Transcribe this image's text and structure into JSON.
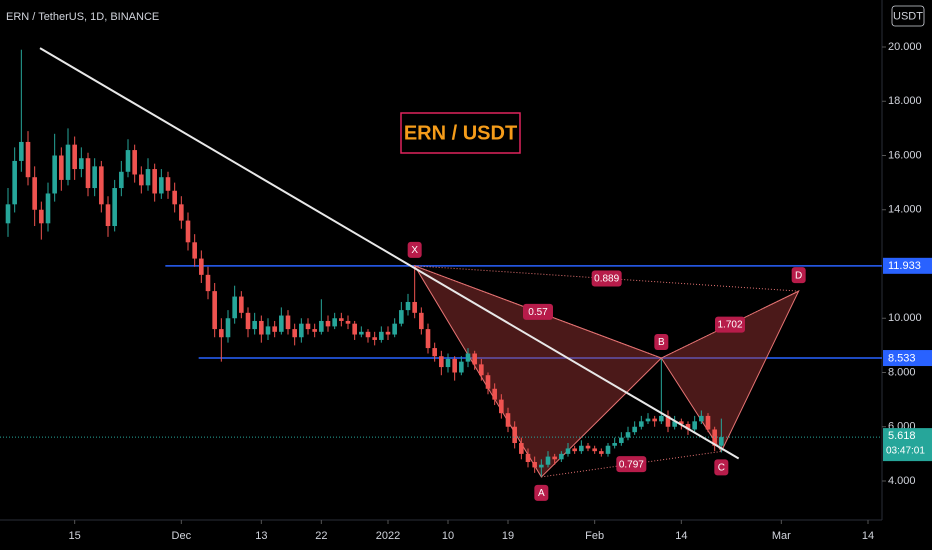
{
  "chart_data": {
    "type": "candlestick",
    "title": "ERN / TetherUS, 1D, BINANCE",
    "currency": "USDT",
    "annotation": "ERN / USDT",
    "countdown": "03:47:01",
    "up_color": "#26a69a",
    "down_color": "#ef5350",
    "xlim": [
      3.8,
      136.1
    ],
    "ylim": [
      2.562,
      21.733
    ],
    "xticks": [
      {
        "value": 15,
        "label": "15"
      },
      {
        "value": 31,
        "label": "Dec"
      },
      {
        "value": 43,
        "label": "13"
      },
      {
        "value": 52,
        "label": "22"
      },
      {
        "value": 62,
        "label": "2022"
      },
      {
        "value": 71,
        "label": "10"
      },
      {
        "value": 80,
        "label": "19"
      },
      {
        "value": 93,
        "label": "Feb"
      },
      {
        "value": 106,
        "label": "14"
      },
      {
        "value": 121,
        "label": "Mar"
      },
      {
        "value": 134,
        "label": "14"
      }
    ],
    "yticks": [
      {
        "value": 4,
        "label": "4.000"
      },
      {
        "value": 6,
        "label": "6.000"
      },
      {
        "value": 8,
        "label": "8.000"
      },
      {
        "value": 10,
        "label": "10.000"
      },
      {
        "value": 14,
        "label": "14.000"
      },
      {
        "value": 16,
        "label": "16.000"
      },
      {
        "value": 18,
        "label": "18.000"
      },
      {
        "value": 20,
        "label": "20.000"
      }
    ],
    "x": [
      5,
      6,
      7,
      8,
      9,
      10,
      11,
      12,
      13,
      14,
      15,
      16,
      17,
      18,
      19,
      20,
      21,
      22,
      23,
      24,
      25,
      26,
      27,
      28,
      29,
      30,
      31,
      32,
      33,
      34,
      35,
      36,
      37,
      38,
      39,
      40,
      41,
      42,
      43,
      44,
      45,
      46,
      47,
      48,
      49,
      50,
      51,
      52,
      53,
      54,
      55,
      56,
      57,
      58,
      59,
      60,
      61,
      62,
      63,
      64,
      65,
      66,
      67,
      68,
      69,
      70,
      71,
      72,
      73,
      74,
      75,
      76,
      77,
      78,
      79,
      80,
      81,
      82,
      83,
      84,
      85,
      86,
      87,
      88,
      89,
      90,
      91,
      92,
      93,
      94,
      95,
      96,
      97,
      98,
      99,
      100,
      101,
      102,
      103,
      104,
      105,
      106,
      107,
      108,
      109,
      110,
      111,
      112
    ],
    "ohlc": [
      [
        13.5,
        14.8,
        13.0,
        14.2
      ],
      [
        14.2,
        16.3,
        13.9,
        15.8
      ],
      [
        15.8,
        19.9,
        15.4,
        16.5
      ],
      [
        16.5,
        16.9,
        14.9,
        15.2
      ],
      [
        15.2,
        15.6,
        13.4,
        14.0
      ],
      [
        14.0,
        14.3,
        12.9,
        13.5
      ],
      [
        13.5,
        15.0,
        13.2,
        14.6
      ],
      [
        14.6,
        16.8,
        14.3,
        16.0
      ],
      [
        16.0,
        16.3,
        14.7,
        15.1
      ],
      [
        15.1,
        17.0,
        14.9,
        16.4
      ],
      [
        16.4,
        16.7,
        15.1,
        15.5
      ],
      [
        15.5,
        16.3,
        15.2,
        15.9
      ],
      [
        15.9,
        16.1,
        14.5,
        14.8
      ],
      [
        14.8,
        15.9,
        14.5,
        15.6
      ],
      [
        15.6,
        15.8,
        13.9,
        14.2
      ],
      [
        14.2,
        14.5,
        13.0,
        13.4
      ],
      [
        13.4,
        15.1,
        13.2,
        14.8
      ],
      [
        14.8,
        15.8,
        14.5,
        15.4
      ],
      [
        15.4,
        16.6,
        15.2,
        16.2
      ],
      [
        16.2,
        16.4,
        15.0,
        15.3
      ],
      [
        15.3,
        15.6,
        14.6,
        14.9
      ],
      [
        14.9,
        15.9,
        14.7,
        15.5
      ],
      [
        15.5,
        15.7,
        14.3,
        14.6
      ],
      [
        14.6,
        15.5,
        14.4,
        15.2
      ],
      [
        15.2,
        15.4,
        14.4,
        14.7
      ],
      [
        14.7,
        15.0,
        13.9,
        14.2
      ],
      [
        14.2,
        14.5,
        13.3,
        13.6
      ],
      [
        13.6,
        13.9,
        12.5,
        12.8
      ],
      [
        12.8,
        13.1,
        11.9,
        12.2
      ],
      [
        12.2,
        12.5,
        11.3,
        11.6
      ],
      [
        11.6,
        11.9,
        10.7,
        11.0
      ],
      [
        11.0,
        11.3,
        9.3,
        9.6
      ],
      [
        9.6,
        10.0,
        8.4,
        9.3
      ],
      [
        9.3,
        10.3,
        9.1,
        10.0
      ],
      [
        10.0,
        11.2,
        9.8,
        10.8
      ],
      [
        10.8,
        11.0,
        10.0,
        10.2
      ],
      [
        10.2,
        10.4,
        9.3,
        9.6
      ],
      [
        9.6,
        10.2,
        9.4,
        9.9
      ],
      [
        9.9,
        10.1,
        9.1,
        9.4
      ],
      [
        9.4,
        10.0,
        9.2,
        9.7
      ],
      [
        9.7,
        9.9,
        9.3,
        9.5
      ],
      [
        9.5,
        10.4,
        9.4,
        10.1
      ],
      [
        10.1,
        10.3,
        9.4,
        9.6
      ],
      [
        9.6,
        9.8,
        9.0,
        9.3
      ],
      [
        9.3,
        10.0,
        9.1,
        9.8
      ],
      [
        9.8,
        10.0,
        9.4,
        9.6
      ],
      [
        9.6,
        9.8,
        9.3,
        9.5
      ],
      [
        9.5,
        10.7,
        9.4,
        9.9
      ],
      [
        9.9,
        10.1,
        9.5,
        9.7
      ],
      [
        9.7,
        10.2,
        9.6,
        10.0
      ],
      [
        10.0,
        10.2,
        9.7,
        9.9
      ],
      [
        9.9,
        10.1,
        9.6,
        9.8
      ],
      [
        9.8,
        9.9,
        9.2,
        9.4
      ],
      [
        9.4,
        9.7,
        9.3,
        9.5
      ],
      [
        9.5,
        9.6,
        9.1,
        9.3
      ],
      [
        9.3,
        9.5,
        9.0,
        9.2
      ],
      [
        9.2,
        9.7,
        9.1,
        9.5
      ],
      [
        9.5,
        9.7,
        9.2,
        9.4
      ],
      [
        9.4,
        10.0,
        9.3,
        9.8
      ],
      [
        9.8,
        10.6,
        9.7,
        10.3
      ],
      [
        10.3,
        10.9,
        10.1,
        10.6
      ],
      [
        10.6,
        11.9,
        10.0,
        10.2
      ],
      [
        10.2,
        10.4,
        9.4,
        9.6
      ],
      [
        9.6,
        9.8,
        8.7,
        8.9
      ],
      [
        8.9,
        9.1,
        8.4,
        8.6
      ],
      [
        8.6,
        8.8,
        7.9,
        8.2
      ],
      [
        8.2,
        8.7,
        8.0,
        8.5
      ],
      [
        8.5,
        8.6,
        7.7,
        8.0
      ],
      [
        8.0,
        8.6,
        7.9,
        8.4
      ],
      [
        8.4,
        8.9,
        8.2,
        8.7
      ],
      [
        8.7,
        8.8,
        8.1,
        8.3
      ],
      [
        8.3,
        8.5,
        7.7,
        7.9
      ],
      [
        7.9,
        8.0,
        7.2,
        7.4
      ],
      [
        7.4,
        7.6,
        6.8,
        7.0
      ],
      [
        7.0,
        7.2,
        6.3,
        6.5
      ],
      [
        6.5,
        6.7,
        5.8,
        6.0
      ],
      [
        6.0,
        6.2,
        5.2,
        5.4
      ],
      [
        5.4,
        5.6,
        4.8,
        5.0
      ],
      [
        5.0,
        5.2,
        4.5,
        4.7
      ],
      [
        4.7,
        4.9,
        4.3,
        4.5
      ],
      [
        4.5,
        4.8,
        4.15,
        4.6
      ],
      [
        4.6,
        5.1,
        4.5,
        4.9
      ],
      [
        4.9,
        5.0,
        4.6,
        4.8
      ],
      [
        4.8,
        5.1,
        4.7,
        5.0
      ],
      [
        5.0,
        5.4,
        4.9,
        5.2
      ],
      [
        5.2,
        5.3,
        5.0,
        5.1
      ],
      [
        5.1,
        5.5,
        5.0,
        5.3
      ],
      [
        5.3,
        5.4,
        5.1,
        5.2
      ],
      [
        5.2,
        5.3,
        5.0,
        5.1
      ],
      [
        5.1,
        5.2,
        4.9,
        5.0
      ],
      [
        5.0,
        5.4,
        4.9,
        5.3
      ],
      [
        5.3,
        5.6,
        5.2,
        5.4
      ],
      [
        5.4,
        5.8,
        5.3,
        5.6
      ],
      [
        5.6,
        6.0,
        5.5,
        5.8
      ],
      [
        5.8,
        6.2,
        5.7,
        6.0
      ],
      [
        6.0,
        6.4,
        5.9,
        6.2
      ],
      [
        6.2,
        6.5,
        6.1,
        6.3
      ],
      [
        6.3,
        6.4,
        6.0,
        6.2
      ],
      [
        6.2,
        8.5,
        6.1,
        6.4
      ],
      [
        6.4,
        6.6,
        5.8,
        6.0
      ],
      [
        6.0,
        6.4,
        5.9,
        6.2
      ],
      [
        6.2,
        6.3,
        5.9,
        6.1
      ],
      [
        6.1,
        6.2,
        5.7,
        5.9
      ],
      [
        5.9,
        6.4,
        5.8,
        6.2
      ],
      [
        6.2,
        6.6,
        6.1,
        6.4
      ],
      [
        6.4,
        6.5,
        5.8,
        5.9
      ],
      [
        5.9,
        6.0,
        5.1,
        5.3
      ],
      [
        5.3,
        6.3,
        5.05,
        5.618
      ]
    ],
    "levels": [
      {
        "value": 11.933,
        "start": 28.6
      },
      {
        "value": 8.533,
        "start": 33.6
      }
    ],
    "trendline": {
      "x": [
        9.8,
        114.6
      ],
      "y": [
        19.96,
        4.83
      ]
    },
    "pattern": {
      "points": [
        {
          "label": "X",
          "x": 66,
          "y": 11.933
        },
        {
          "label": "A",
          "x": 85,
          "y": 4.15
        },
        {
          "label": "B",
          "x": 103,
          "y": 8.533
        },
        {
          "label": "C",
          "x": 112,
          "y": 5.09
        },
        {
          "label": "D",
          "x": 123.6,
          "y": 11.0
        }
      ],
      "ratios": [
        0.57,
        0.797,
        1.702,
        0.889
      ]
    }
  }
}
